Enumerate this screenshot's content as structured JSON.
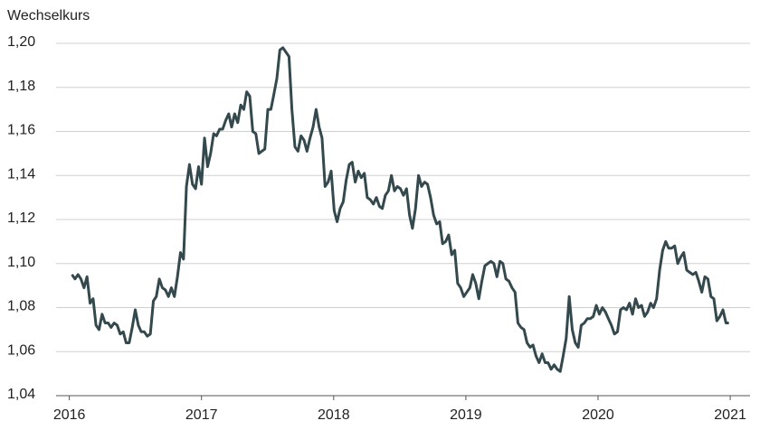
{
  "chart_data": {
    "type": "line",
    "title": "Wechselkurs",
    "x": [
      2016.02,
      2016.043,
      2016.066,
      2016.088,
      2016.111,
      2016.134,
      2016.157,
      2016.18,
      2016.202,
      2016.225,
      2016.248,
      2016.271,
      2016.294,
      2016.316,
      2016.339,
      2016.362,
      2016.385,
      2016.408,
      2016.43,
      2016.453,
      2016.476,
      2016.499,
      2016.522,
      2016.544,
      2016.567,
      2016.59,
      2016.613,
      2016.636,
      2016.658,
      2016.681,
      2016.704,
      2016.727,
      2016.75,
      2016.772,
      2016.795,
      2016.818,
      2016.841,
      2016.864,
      2016.886,
      2016.909,
      2016.932,
      2016.955,
      2016.978,
      2017.0,
      2017.023,
      2017.046,
      2017.069,
      2017.092,
      2017.114,
      2017.137,
      2017.16,
      2017.183,
      2017.206,
      2017.228,
      2017.251,
      2017.274,
      2017.297,
      2017.32,
      2017.342,
      2017.365,
      2017.388,
      2017.411,
      2017.434,
      2017.456,
      2017.479,
      2017.502,
      2017.525,
      2017.548,
      2017.57,
      2017.593,
      2017.616,
      2017.639,
      2017.662,
      2017.684,
      2017.707,
      2017.73,
      2017.753,
      2017.776,
      2017.798,
      2017.821,
      2017.844,
      2017.867,
      2017.89,
      2017.912,
      2017.935,
      2017.958,
      2017.981,
      2018.004,
      2018.026,
      2018.049,
      2018.072,
      2018.095,
      2018.118,
      2018.14,
      2018.163,
      2018.186,
      2018.209,
      2018.232,
      2018.254,
      2018.277,
      2018.3,
      2018.323,
      2018.346,
      2018.368,
      2018.391,
      2018.414,
      2018.437,
      2018.46,
      2018.482,
      2018.505,
      2018.528,
      2018.551,
      2018.574,
      2018.596,
      2018.619,
      2018.642,
      2018.665,
      2018.688,
      2018.71,
      2018.733,
      2018.756,
      2018.779,
      2018.802,
      2018.824,
      2018.847,
      2018.87,
      2018.893,
      2018.916,
      2018.938,
      2018.961,
      2018.984,
      2019.007,
      2019.03,
      2019.052,
      2019.075,
      2019.098,
      2019.121,
      2019.144,
      2019.166,
      2019.189,
      2019.212,
      2019.235,
      2019.258,
      2019.28,
      2019.303,
      2019.326,
      2019.349,
      2019.372,
      2019.394,
      2019.417,
      2019.44,
      2019.463,
      2019.486,
      2019.508,
      2019.531,
      2019.554,
      2019.577,
      2019.6,
      2019.622,
      2019.645,
      2019.668,
      2019.691,
      2019.714,
      2019.736,
      2019.759,
      2019.782,
      2019.805,
      2019.828,
      2019.85,
      2019.873,
      2019.896,
      2019.919,
      2019.942,
      2019.964,
      2019.987,
      2020.01,
      2020.033,
      2020.056,
      2020.078,
      2020.101,
      2020.124,
      2020.147,
      2020.17,
      2020.192,
      2020.215,
      2020.238,
      2020.261,
      2020.284,
      2020.306,
      2020.329,
      2020.352,
      2020.375,
      2020.398,
      2020.42,
      2020.443,
      2020.466,
      2020.489,
      2020.512,
      2020.534,
      2020.557,
      2020.58,
      2020.603,
      2020.626,
      2020.648,
      2020.671,
      2020.694,
      2020.717,
      2020.74,
      2020.762,
      2020.785,
      2020.808,
      2020.831,
      2020.854,
      2020.876,
      2020.899,
      2020.922,
      2020.945,
      2020.968,
      2020.99
    ],
    "series": [
      {
        "color": "#34494d",
        "values": [
          1.095,
          1.093,
          1.095,
          1.093,
          1.089,
          1.094,
          1.082,
          1.084,
          1.072,
          1.07,
          1.077,
          1.073,
          1.073,
          1.071,
          1.073,
          1.072,
          1.068,
          1.069,
          1.064,
          1.064,
          1.071,
          1.079,
          1.072,
          1.069,
          1.069,
          1.067,
          1.068,
          1.083,
          1.085,
          1.093,
          1.089,
          1.088,
          1.085,
          1.089,
          1.085,
          1.094,
          1.105,
          1.102,
          1.135,
          1.145,
          1.136,
          1.134,
          1.144,
          1.136,
          1.157,
          1.144,
          1.15,
          1.159,
          1.158,
          1.161,
          1.161,
          1.165,
          1.168,
          1.162,
          1.168,
          1.164,
          1.172,
          1.17,
          1.178,
          1.176,
          1.16,
          1.159,
          1.15,
          1.151,
          1.152,
          1.17,
          1.17,
          1.177,
          1.184,
          1.197,
          1.198,
          1.196,
          1.194,
          1.17,
          1.153,
          1.151,
          1.158,
          1.156,
          1.151,
          1.157,
          1.162,
          1.17,
          1.162,
          1.157,
          1.135,
          1.137,
          1.142,
          1.124,
          1.119,
          1.125,
          1.128,
          1.138,
          1.145,
          1.146,
          1.137,
          1.142,
          1.139,
          1.141,
          1.13,
          1.129,
          1.127,
          1.13,
          1.126,
          1.125,
          1.131,
          1.133,
          1.14,
          1.133,
          1.135,
          1.134,
          1.131,
          1.134,
          1.122,
          1.116,
          1.125,
          1.14,
          1.135,
          1.137,
          1.136,
          1.13,
          1.122,
          1.118,
          1.119,
          1.109,
          1.11,
          1.113,
          1.104,
          1.106,
          1.091,
          1.089,
          1.085,
          1.087,
          1.089,
          1.095,
          1.091,
          1.084,
          1.092,
          1.099,
          1.1,
          1.101,
          1.1,
          1.094,
          1.101,
          1.1,
          1.093,
          1.092,
          1.089,
          1.087,
          1.073,
          1.071,
          1.07,
          1.064,
          1.062,
          1.063,
          1.058,
          1.055,
          1.059,
          1.055,
          1.055,
          1.052,
          1.054,
          1.052,
          1.051,
          1.058,
          1.066,
          1.085,
          1.07,
          1.064,
          1.062,
          1.072,
          1.073,
          1.075,
          1.075,
          1.076,
          1.081,
          1.077,
          1.08,
          1.078,
          1.075,
          1.072,
          1.068,
          1.069,
          1.079,
          1.08,
          1.079,
          1.082,
          1.077,
          1.084,
          1.08,
          1.081,
          1.076,
          1.078,
          1.082,
          1.08,
          1.084,
          1.097,
          1.106,
          1.11,
          1.107,
          1.107,
          1.108,
          1.1,
          1.103,
          1.105,
          1.097,
          1.096,
          1.095,
          1.096,
          1.092,
          1.087,
          1.094,
          1.093,
          1.085,
          1.084,
          1.074,
          1.076,
          1.079,
          1.073,
          1.073
        ]
      }
    ],
    "xlim": [
      2015.9,
      2021.15
    ],
    "xticks": [
      2016,
      2017,
      2018,
      2019,
      2020,
      2021
    ],
    "ylim": [
      1.04,
      1.2
    ],
    "yticks": [
      {
        "value": 1.04,
        "label": "1,04"
      },
      {
        "value": 1.06,
        "label": "1,06"
      },
      {
        "value": 1.08,
        "label": "1,08"
      },
      {
        "value": 1.1,
        "label": "1,10"
      },
      {
        "value": 1.12,
        "label": "1,12"
      },
      {
        "value": 1.14,
        "label": "1,14"
      },
      {
        "value": 1.16,
        "label": "1,16"
      },
      {
        "value": 1.18,
        "label": "1,18"
      },
      {
        "value": 1.2,
        "label": "1,20"
      }
    ],
    "grid": true
  }
}
